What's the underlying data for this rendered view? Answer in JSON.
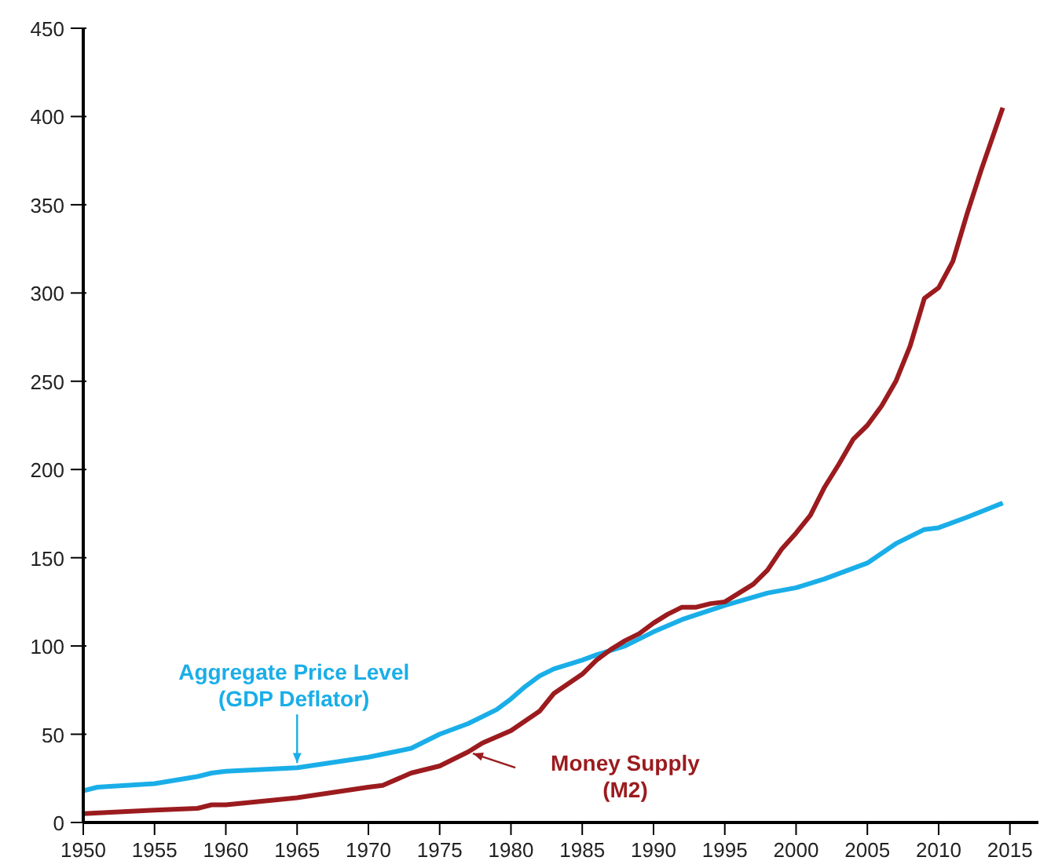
{
  "chart_data": {
    "type": "line",
    "xlim": [
      1950,
      2017
    ],
    "xticks": [
      1950,
      1955,
      1960,
      1965,
      1970,
      1975,
      1980,
      1985,
      1990,
      1995,
      2000,
      2005,
      2010,
      2015
    ],
    "ylim": [
      0,
      450
    ],
    "yticks": [
      0,
      50,
      100,
      150,
      200,
      250,
      300,
      350,
      400,
      450
    ],
    "marker": "none",
    "line_style": "solid",
    "series": [
      {
        "name": "Aggregate Price Level\n(GDP Deflator)",
        "color": "#1aaee8",
        "x": [
          1950,
          1951,
          1955,
          1958,
          1959,
          1960,
          1965,
          1970,
          1973,
          1974,
          1975,
          1977,
          1979,
          1980,
          1981,
          1982,
          1983,
          1985,
          1986,
          1988,
          1990,
          1992,
          1995,
          1998,
          2000,
          2002,
          2005,
          2007,
          2009,
          2010,
          2012,
          2014.5
        ],
        "values": [
          18,
          20,
          22,
          26,
          28,
          29,
          31,
          37,
          42,
          46,
          50,
          56,
          64,
          70,
          77,
          83,
          87,
          92,
          95,
          100,
          108,
          115,
          123,
          130,
          133,
          138,
          147,
          158,
          166,
          167,
          173,
          181
        ]
      },
      {
        "name": "Money Supply\n(M2)",
        "color": "#9b1b1e",
        "x": [
          1950,
          1955,
          1958,
          1959,
          1960,
          1965,
          1970,
          1971,
          1973,
          1975,
          1977,
          1978,
          1980,
          1982,
          1983,
          1985,
          1986,
          1987,
          1988,
          1989,
          1990,
          1991,
          1992,
          1993,
          1994,
          1995,
          1996,
          1997,
          1998,
          1999,
          2000,
          2001,
          2002,
          2003,
          2004,
          2005,
          2006,
          2007,
          2008,
          2009,
          2010,
          2011,
          2012,
          2013,
          2014.5
        ],
        "values": [
          5,
          7,
          8,
          10,
          10,
          14,
          20,
          21,
          28,
          32,
          40,
          45,
          52,
          63,
          73,
          84,
          92,
          98,
          103,
          107,
          113,
          118,
          122,
          122,
          124,
          125,
          130,
          135,
          143,
          155,
          164,
          174,
          190,
          203,
          217,
          225,
          236,
          250,
          270,
          297,
          303,
          318,
          345,
          370,
          405
        ]
      }
    ]
  }
}
